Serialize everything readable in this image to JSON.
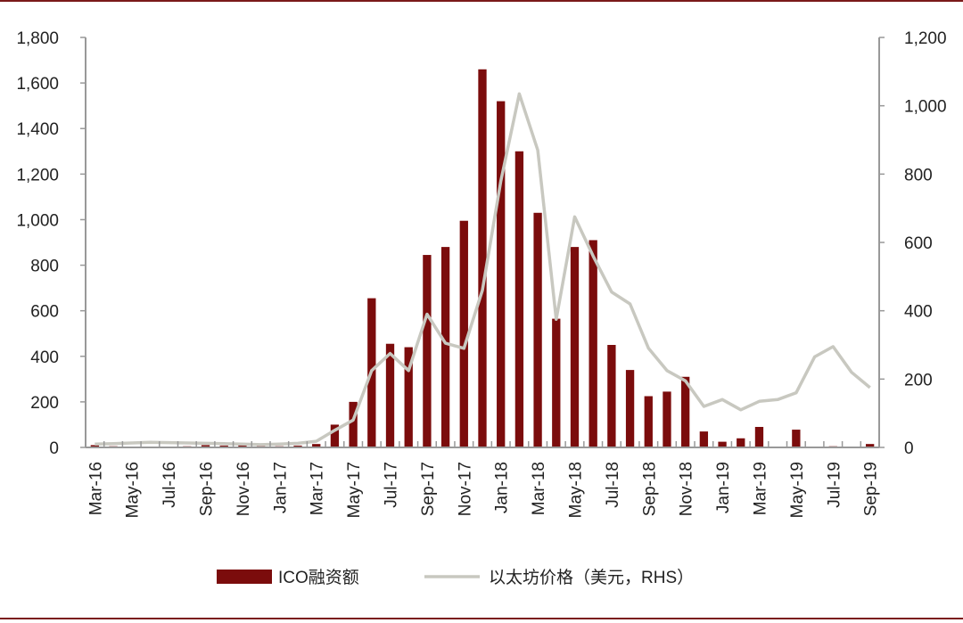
{
  "chart_data": {
    "type": "bar",
    "title": "",
    "xlabel": "",
    "ylabel": "",
    "categories": [
      "Mar-16",
      "Apr-16",
      "May-16",
      "Jun-16",
      "Jul-16",
      "Aug-16",
      "Sep-16",
      "Oct-16",
      "Nov-16",
      "Dec-16",
      "Jan-17",
      "Feb-17",
      "Mar-17",
      "Apr-17",
      "May-17",
      "Jun-17",
      "Jul-17",
      "Aug-17",
      "Sep-17",
      "Oct-17",
      "Nov-17",
      "Dec-17",
      "Jan-18",
      "Feb-18",
      "Mar-18",
      "Apr-18",
      "May-18",
      "Jun-18",
      "Jul-18",
      "Aug-18",
      "Sep-18",
      "Oct-18",
      "Nov-18",
      "Dec-18",
      "Jan-19",
      "Feb-19",
      "Mar-19",
      "Apr-19",
      "May-19",
      "Jun-19",
      "Jul-19",
      "Aug-19",
      "Sep-19"
    ],
    "x_tick_labels": [
      "Mar-16",
      "May-16",
      "Jul-16",
      "Sep-16",
      "Nov-16",
      "Jan-17",
      "Mar-17",
      "May-17",
      "Jul-17",
      "Sep-17",
      "Nov-17",
      "Jan-18",
      "Mar-18",
      "May-18",
      "Jul-18",
      "Sep-18",
      "Nov-18",
      "Jan-19",
      "Mar-19",
      "May-19",
      "Jul-19",
      "Sep-19"
    ],
    "y_left": {
      "min": 0,
      "max": 1800,
      "ticks": [
        "0",
        "200",
        "400",
        "600",
        "800",
        "1,000",
        "1,200",
        "1,400",
        "1,600",
        "1,800"
      ]
    },
    "y_right": {
      "min": 0,
      "max": 1200,
      "ticks": [
        "0",
        "200",
        "400",
        "600",
        "800",
        "1,000",
        "1,200"
      ]
    },
    "series": [
      {
        "name": "ICO融资额",
        "type": "bar",
        "axis": "left",
        "color": "#7b0c0c",
        "values": [
          10,
          5,
          3,
          2,
          3,
          5,
          10,
          8,
          10,
          5,
          5,
          8,
          15,
          100,
          200,
          655,
          455,
          440,
          845,
          880,
          995,
          1660,
          1520,
          1300,
          1030,
          565,
          880,
          910,
          450,
          340,
          225,
          245,
          310,
          70,
          25,
          40,
          90,
          0,
          78,
          0,
          5,
          0,
          15
        ]
      },
      {
        "name": "以太坊价格（美元，RHS）",
        "type": "line",
        "axis": "right",
        "color": "#c8c8c0",
        "values": [
          10,
          11,
          13,
          15,
          14,
          13,
          12,
          11,
          10,
          8,
          10,
          12,
          18,
          50,
          80,
          225,
          275,
          225,
          390,
          305,
          290,
          460,
          780,
          1035,
          870,
          375,
          675,
          560,
          455,
          420,
          290,
          225,
          195,
          120,
          140,
          110,
          135,
          140,
          160,
          265,
          295,
          220,
          175
        ]
      }
    ],
    "legend": {
      "placement": "bottom",
      "items": [
        "ICO融资额",
        "以太坊价格（美元，RHS）"
      ]
    }
  }
}
